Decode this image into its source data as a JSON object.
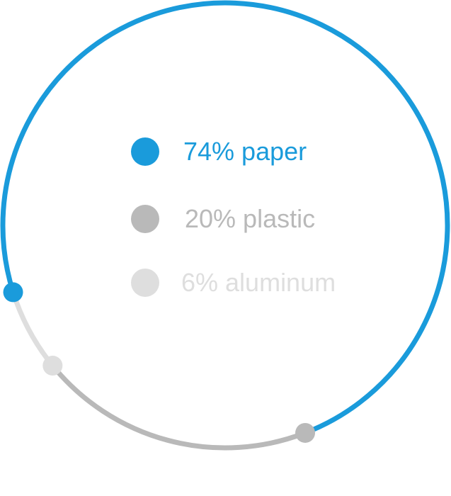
{
  "chart_data": {
    "type": "pie",
    "style": "ring",
    "title": "",
    "categories": [
      "paper",
      "plastic",
      "aluminum"
    ],
    "values": [
      74,
      20,
      6
    ],
    "labels": [
      "74% paper",
      "20% plastic",
      "6% aluminum"
    ],
    "legend_position": "center",
    "colors": [
      "#1a9bdb",
      "#b9b9b9",
      "#dedede"
    ]
  }
}
